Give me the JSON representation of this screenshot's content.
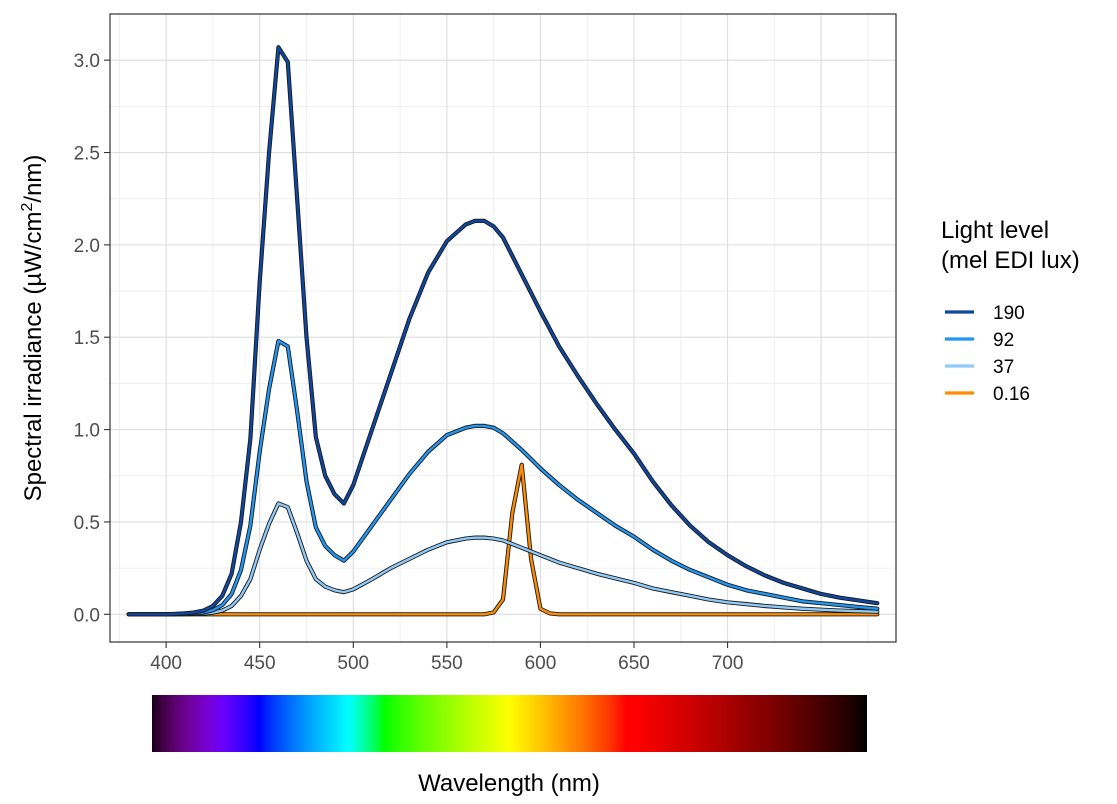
{
  "chart_data": {
    "type": "line",
    "title": "",
    "xlabel": "Wavelength (nm)",
    "ylabel_prefix": "Spectral irradiance (",
    "ylabel_mu": "µ",
    "ylabel_unit": "W/cm",
    "ylabel_sup": "2",
    "ylabel_suffix": "/nm)",
    "xlim": [
      370,
      790
    ],
    "ylim": [
      -0.15,
      3.25
    ],
    "xticks": [
      {
        "value": 400,
        "label": "400"
      },
      {
        "value": 450,
        "label": "450"
      },
      {
        "value": 500,
        "label": "500"
      },
      {
        "value": 550,
        "label": "550"
      },
      {
        "value": 600,
        "label": "600"
      },
      {
        "value": 650,
        "label": "650"
      },
      {
        "value": 700,
        "label": "700"
      }
    ],
    "yticks": [
      {
        "value": 0,
        "label": "0.0"
      },
      {
        "value": 0.5,
        "label": "0.5"
      },
      {
        "value": 1.0,
        "label": "1.0"
      },
      {
        "value": 1.5,
        "label": "1.5"
      },
      {
        "value": 2.0,
        "label": "2.0"
      },
      {
        "value": 2.5,
        "label": "2.5"
      },
      {
        "value": 3.0,
        "label": "3.0"
      }
    ],
    "grid": true,
    "legend": {
      "title_line1": "Light level",
      "title_line2": "(mel EDI lux)",
      "position": "right"
    },
    "series": [
      {
        "name": "190",
        "color": "#0d47a1",
        "x": [
          380,
          400,
          410,
          415,
          420,
          425,
          430,
          435,
          440,
          445,
          450,
          455,
          460,
          465,
          470,
          475,
          480,
          485,
          490,
          495,
          500,
          510,
          520,
          530,
          540,
          550,
          560,
          565,
          570,
          575,
          580,
          590,
          600,
          610,
          620,
          630,
          640,
          650,
          660,
          670,
          680,
          690,
          700,
          710,
          720,
          730,
          740,
          750,
          760,
          770,
          780
        ],
        "y": [
          0,
          0,
          0.005,
          0.01,
          0.02,
          0.045,
          0.1,
          0.22,
          0.5,
          0.95,
          1.8,
          2.5,
          3.07,
          2.99,
          2.25,
          1.5,
          0.96,
          0.75,
          0.65,
          0.6,
          0.7,
          1.0,
          1.3,
          1.6,
          1.85,
          2.02,
          2.11,
          2.13,
          2.13,
          2.1,
          2.04,
          1.84,
          1.64,
          1.45,
          1.29,
          1.14,
          1.0,
          0.87,
          0.72,
          0.59,
          0.48,
          0.39,
          0.32,
          0.26,
          0.21,
          0.17,
          0.14,
          0.11,
          0.09,
          0.075,
          0.06
        ]
      },
      {
        "name": "92",
        "color": "#2196f3",
        "x": [
          380,
          400,
          410,
          415,
          420,
          425,
          430,
          435,
          440,
          445,
          450,
          455,
          460,
          465,
          470,
          475,
          480,
          485,
          490,
          495,
          500,
          510,
          520,
          530,
          540,
          550,
          560,
          565,
          570,
          575,
          580,
          590,
          600,
          610,
          620,
          630,
          640,
          650,
          660,
          670,
          680,
          690,
          700,
          710,
          720,
          730,
          740,
          750,
          760,
          770,
          780
        ],
        "y": [
          0,
          0,
          0.002,
          0.005,
          0.01,
          0.022,
          0.05,
          0.11,
          0.24,
          0.48,
          0.88,
          1.22,
          1.48,
          1.45,
          1.1,
          0.72,
          0.47,
          0.37,
          0.32,
          0.29,
          0.34,
          0.48,
          0.62,
          0.76,
          0.88,
          0.97,
          1.01,
          1.02,
          1.02,
          1.01,
          0.98,
          0.89,
          0.79,
          0.7,
          0.62,
          0.55,
          0.48,
          0.42,
          0.35,
          0.29,
          0.24,
          0.2,
          0.16,
          0.13,
          0.11,
          0.09,
          0.07,
          0.06,
          0.05,
          0.04,
          0.03
        ]
      },
      {
        "name": "37",
        "color": "#90caf9",
        "x": [
          380,
          400,
          410,
          415,
          420,
          425,
          430,
          435,
          440,
          445,
          450,
          455,
          460,
          465,
          470,
          475,
          480,
          485,
          490,
          495,
          500,
          510,
          520,
          530,
          540,
          550,
          560,
          565,
          570,
          575,
          580,
          590,
          600,
          610,
          620,
          630,
          640,
          650,
          660,
          670,
          680,
          690,
          700,
          710,
          720,
          730,
          740,
          750,
          760,
          770,
          780
        ],
        "y": [
          0,
          0,
          0.001,
          0.002,
          0.004,
          0.009,
          0.02,
          0.045,
          0.1,
          0.19,
          0.35,
          0.49,
          0.6,
          0.58,
          0.44,
          0.29,
          0.19,
          0.15,
          0.13,
          0.12,
          0.135,
          0.19,
          0.25,
          0.3,
          0.35,
          0.39,
          0.41,
          0.415,
          0.415,
          0.41,
          0.4,
          0.36,
          0.32,
          0.28,
          0.25,
          0.22,
          0.195,
          0.17,
          0.14,
          0.12,
          0.1,
          0.08,
          0.065,
          0.055,
          0.045,
          0.037,
          0.03,
          0.025,
          0.02,
          0.017,
          0.014
        ]
      },
      {
        "name": "0.16",
        "color": "#ff8c00",
        "x": [
          380,
          570,
          575,
          580,
          585,
          590,
          595,
          600,
          605,
          610,
          780
        ],
        "y": [
          0,
          0,
          0.01,
          0.08,
          0.55,
          0.81,
          0.3,
          0.03,
          0.005,
          0,
          0
        ]
      }
    ],
    "spectrum_bar": {
      "range": [
        380,
        780
      ]
    }
  }
}
